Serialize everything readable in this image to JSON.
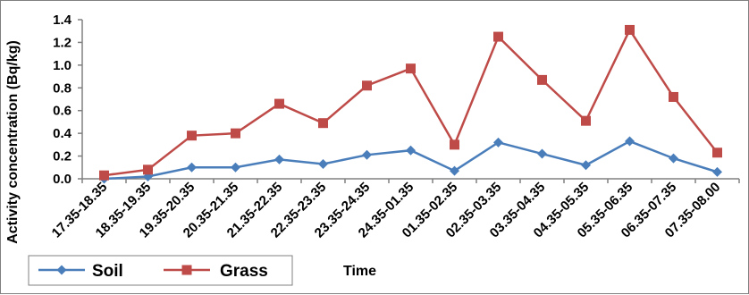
{
  "chart_data": {
    "type": "line",
    "categories": [
      "17.35-18.35",
      "18.35-19.35",
      "19.35-20.35",
      "20.35-21.35",
      "21.35-22.35",
      "22.35-23.35",
      "23.35-24.35",
      "24.35-01.35",
      "01.35-02.35",
      "02.35-03.35",
      "03.35-04.35",
      "04.35-05.35",
      "05.35-06.35",
      "06.35-07.35",
      "07.35-08.00"
    ],
    "series": [
      {
        "name": "Soil",
        "color": "#4a7ebb",
        "marker": "diamond",
        "values": [
          0.0,
          0.02,
          0.1,
          0.1,
          0.17,
          0.13,
          0.21,
          0.25,
          0.07,
          0.32,
          0.22,
          0.12,
          0.33,
          0.18,
          0.06
        ]
      },
      {
        "name": "Grass",
        "color": "#be4b48",
        "marker": "square",
        "values": [
          0.03,
          0.08,
          0.38,
          0.4,
          0.66,
          0.49,
          0.82,
          0.97,
          0.3,
          1.25,
          0.87,
          0.51,
          1.31,
          0.72,
          0.23
        ]
      }
    ],
    "title": "",
    "xlabel": "Time",
    "ylabel": "Activity concentration (Bq/kg)",
    "ylim": [
      0,
      1.4
    ],
    "yticks": [
      "0.0",
      "0.2",
      "0.4",
      "0.6",
      "0.8",
      "1.0",
      "1.2",
      "1.4"
    ],
    "grid": false,
    "legend": "bottom-left"
  }
}
